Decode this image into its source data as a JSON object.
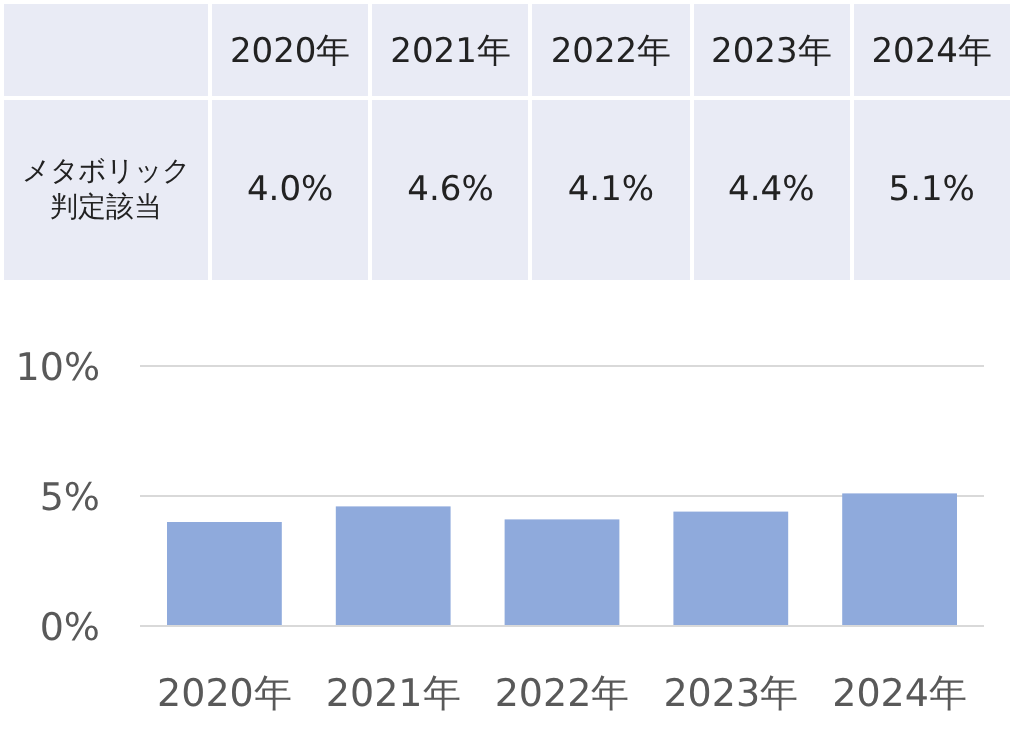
{
  "chart_data": {
    "type": "bar",
    "categories": [
      "2020年",
      "2021年",
      "2022年",
      "2023年",
      "2024年"
    ],
    "series": [
      {
        "name": "メタボリック判定該当",
        "color": "#8faadc",
        "values": [
          4.0,
          4.6,
          4.1,
          4.4,
          5.1
        ],
        "value_labels": [
          "4.0%",
          "4.6%",
          "4.1%",
          "4.4%",
          "5.1%"
        ]
      }
    ],
    "ylim": [
      0,
      10
    ],
    "yticks": [
      {
        "value": 0,
        "label": "0%"
      },
      {
        "value": 5,
        "label": "5%"
      },
      {
        "value": 10,
        "label": "10%"
      }
    ],
    "grid": "y"
  }
}
